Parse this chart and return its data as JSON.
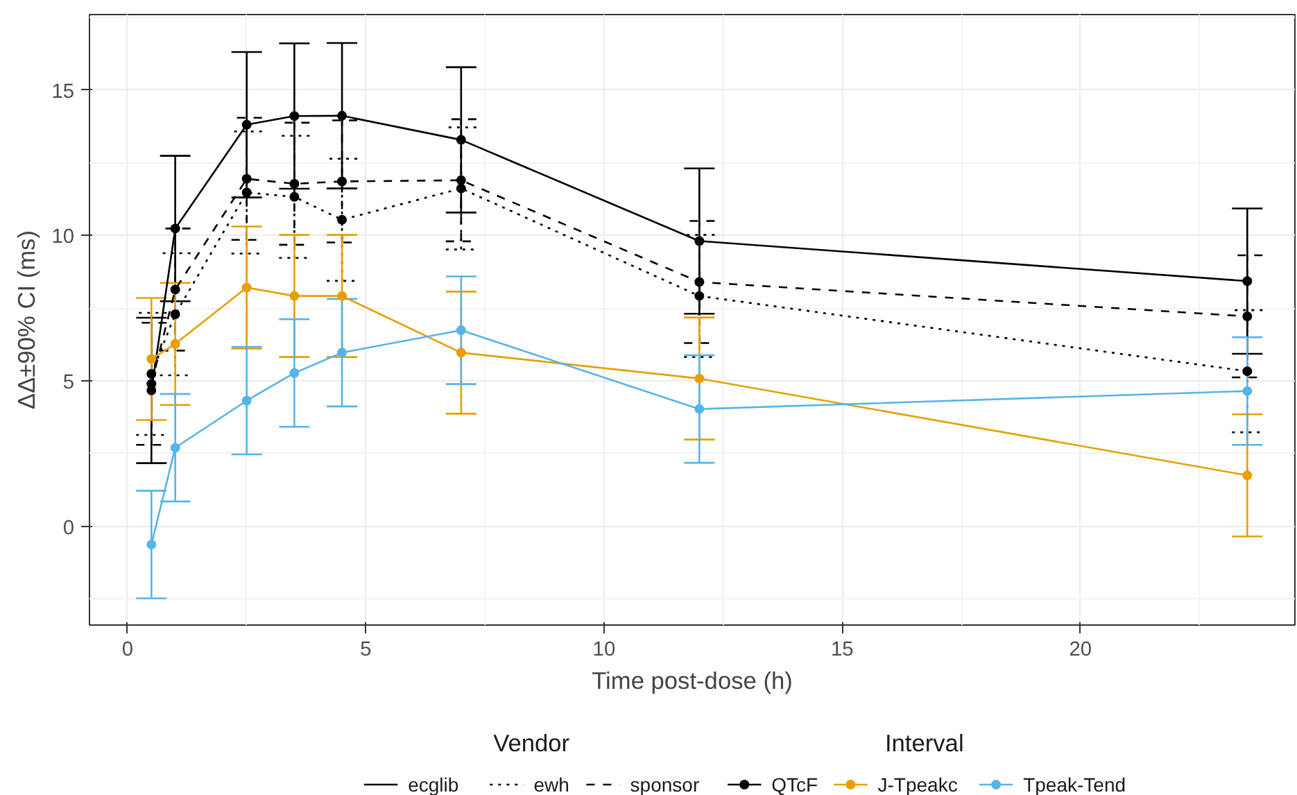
{
  "chart_data": {
    "type": "line",
    "xlabel": "Time post-dose (h)",
    "ylabel": "ΔΔ±90% CI (ms)",
    "x": [
      0.5,
      1,
      2.5,
      3.5,
      4.5,
      7,
      12,
      23.5
    ],
    "xlim": [
      -0.8,
      24.5
    ],
    "xticks": [
      0,
      5,
      10,
      15,
      20
    ],
    "ylim": [
      -3.4,
      17.6
    ],
    "yticks": [
      0,
      5,
      10,
      15
    ],
    "grid": true,
    "legend": "bottom",
    "marker": "circle",
    "legend_title": [
      "Vendor",
      "Interval"
    ],
    "annotations": [
      "ecglib",
      "ewh",
      "sponsor"
    ],
    "series": [
      {
        "name": "QTcF",
        "color": "#000000",
        "line_style": "solid",
        "values": [
          4.67,
          10.24,
          13.81,
          14.11,
          14.12,
          13.29,
          9.81,
          8.43
        ],
        "errors": [
          2.5,
          2.5,
          2.5,
          2.5,
          2.5,
          2.5,
          2.5,
          2.5
        ]
      },
      {
        "color": "#000000",
        "line_style": "dotted",
        "values": [
          5.24,
          7.29,
          11.48,
          11.33,
          10.54,
          11.62,
          7.92,
          5.33
        ],
        "errors": [
          2.1,
          2.1,
          2.1,
          2.1,
          2.1,
          2.1,
          2.1,
          2.1
        ]
      },
      {
        "color": "#000000",
        "line_style": "dashed",
        "values": [
          4.9,
          8.14,
          11.95,
          11.78,
          11.86,
          11.9,
          8.4,
          7.22
        ],
        "errors": [
          2.1,
          2.1,
          2.1,
          2.1,
          2.1,
          2.1,
          2.1,
          2.1
        ]
      },
      {
        "name": "J-Tpeakc",
        "color": "#e69f00",
        "line_style": "solid",
        "values": [
          5.75,
          6.27,
          8.21,
          7.92,
          7.92,
          5.97,
          5.08,
          1.75
        ],
        "errors": [
          2.1,
          2.1,
          2.1,
          2.1,
          2.1,
          2.1,
          2.1,
          2.1
        ]
      },
      {
        "name": "Tpeak-Tend",
        "color": "#56b4e9",
        "line_style": "solid",
        "values": [
          -0.63,
          2.7,
          4.32,
          5.27,
          5.97,
          6.74,
          4.03,
          4.65
        ],
        "errors": [
          1.85,
          1.85,
          1.85,
          1.85,
          1.85,
          1.85,
          1.85,
          1.85
        ]
      }
    ]
  }
}
